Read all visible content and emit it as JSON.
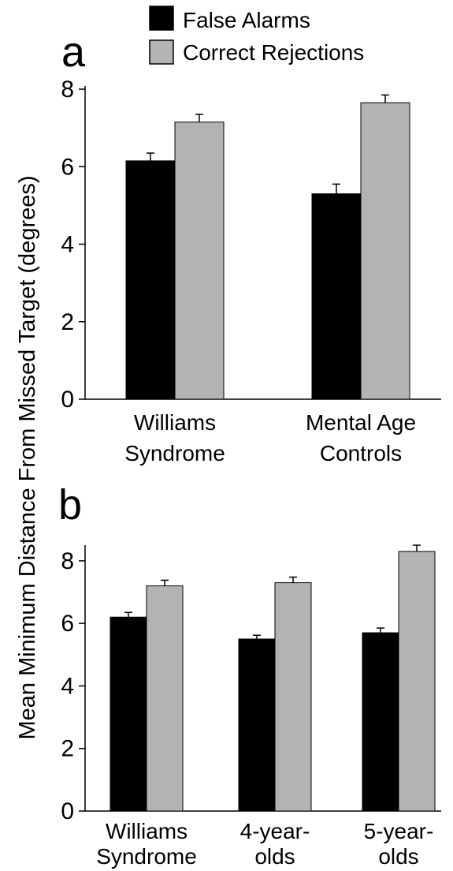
{
  "legend": [
    {
      "label": "False Alarms",
      "color": "#000000"
    },
    {
      "label": "Correct Rejections",
      "color": "#b3b3b3"
    }
  ],
  "ylabel": "Mean Minimum Distance From Missed Target  (degrees)",
  "chart_data": [
    {
      "type": "bar",
      "panel": "a",
      "categories": [
        [
          "Williams",
          "Syndrome"
        ],
        [
          "Mental Age",
          "Controls"
        ]
      ],
      "series": [
        {
          "name": "False Alarms",
          "values": [
            6.15,
            5.3
          ],
          "errors": [
            0.2,
            0.25
          ],
          "color": "#000000"
        },
        {
          "name": "Correct Rejections",
          "values": [
            7.15,
            7.65
          ],
          "errors": [
            0.2,
            0.2
          ],
          "color": "#b3b3b3"
        }
      ],
      "ylim": [
        0,
        8
      ],
      "yticks": [
        0,
        2,
        4,
        6,
        8
      ]
    },
    {
      "type": "bar",
      "panel": "b",
      "categories": [
        [
          "Williams",
          "Syndrome"
        ],
        [
          "4-year-",
          "olds"
        ],
        [
          "5-year-",
          "olds"
        ]
      ],
      "series": [
        {
          "name": "False Alarms",
          "values": [
            6.2,
            5.5,
            5.7
          ],
          "errors": [
            0.15,
            0.12,
            0.15
          ],
          "color": "#000000"
        },
        {
          "name": "Correct Rejections",
          "values": [
            7.2,
            7.3,
            8.3
          ],
          "errors": [
            0.18,
            0.18,
            0.2
          ],
          "color": "#b3b3b3"
        }
      ],
      "ylim": [
        0,
        8.4
      ],
      "yticks": [
        0,
        2,
        4,
        6,
        8
      ]
    }
  ]
}
